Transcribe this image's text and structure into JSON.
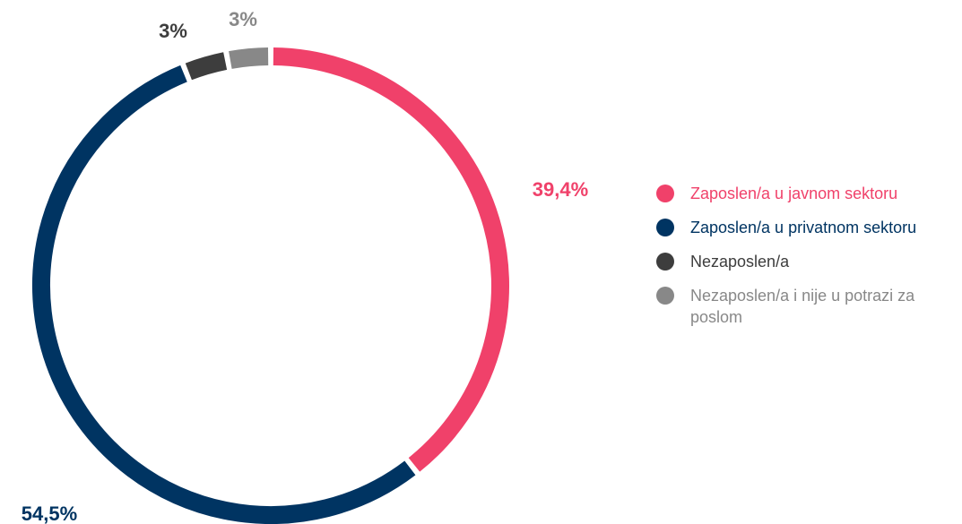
{
  "chart_data": {
    "type": "donut",
    "categories": [
      "Zaposlen/a u javnom sektoru",
      "Zaposlen/a u privatnom sektoru",
      "Nezaposlen/a",
      "Nezaposlen/a i nije u potrazi za poslom"
    ],
    "values": [
      39.4,
      54.5,
      3,
      3
    ],
    "value_labels": [
      "39,4%",
      "54,5%",
      "3%",
      "3%"
    ],
    "colors": [
      "#f0416a",
      "#003462",
      "#3d3d3d",
      "#888888"
    ]
  }
}
